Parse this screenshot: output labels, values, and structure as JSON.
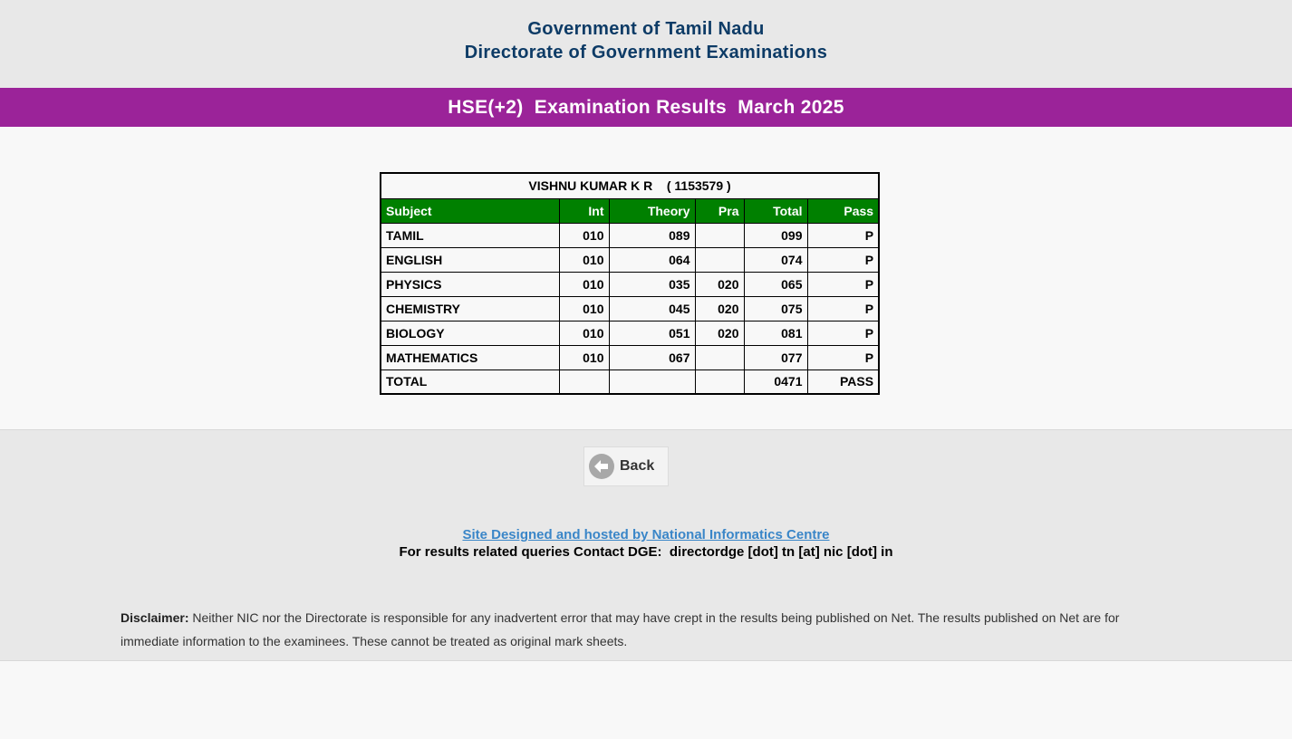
{
  "header": {
    "line1": "Government of Tamil Nadu",
    "line2": "Directorate of Government Examinations"
  },
  "banner": {
    "title": "HSE(+2)  Examination Results  March 2025"
  },
  "result": {
    "candidate": "VISHNU KUMAR K R    ( 1153579 )",
    "columns": [
      "Subject",
      "Int",
      "Theory",
      "Pra",
      "Total",
      "Pass"
    ],
    "rows": [
      {
        "subject": "TAMIL",
        "int": "010",
        "theory": "089",
        "pra": "",
        "total": "099",
        "pass": "P"
      },
      {
        "subject": "ENGLISH",
        "int": "010",
        "theory": "064",
        "pra": "",
        "total": "074",
        "pass": "P"
      },
      {
        "subject": "PHYSICS",
        "int": "010",
        "theory": "035",
        "pra": "020",
        "total": "065",
        "pass": "P"
      },
      {
        "subject": "CHEMISTRY",
        "int": "010",
        "theory": "045",
        "pra": "020",
        "total": "075",
        "pass": "P"
      },
      {
        "subject": "BIOLOGY",
        "int": "010",
        "theory": "051",
        "pra": "020",
        "total": "081",
        "pass": "P"
      },
      {
        "subject": "MATHEMATICS",
        "int": "010",
        "theory": "067",
        "pra": "",
        "total": "077",
        "pass": "P"
      }
    ],
    "total_row": {
      "subject": "TOTAL",
      "int": "",
      "theory": "",
      "pra": "",
      "total": "0471",
      "pass": "PASS"
    }
  },
  "footer": {
    "back_label": "Back",
    "nic_link": "Site Designed and hosted by National Informatics Centre",
    "contact": "For results related queries Contact DGE:  directordge [dot] tn [at] nic [dot] in",
    "disclaimer_label": "Disclaimer:",
    "disclaimer_text": "Neither NIC nor the Directorate is responsible for any inadvertent error that may have crept in the results being published on Net. The results published on Net are for immediate information to the examinees. These cannot be treated as original mark sheets."
  },
  "colors": {
    "header_text": "#0d3b66",
    "banner_bg": "#9b2399",
    "table_header_bg": "#008000",
    "link": "#3a86c8"
  },
  "icons": {
    "back": "arrow-left-circle-icon"
  }
}
